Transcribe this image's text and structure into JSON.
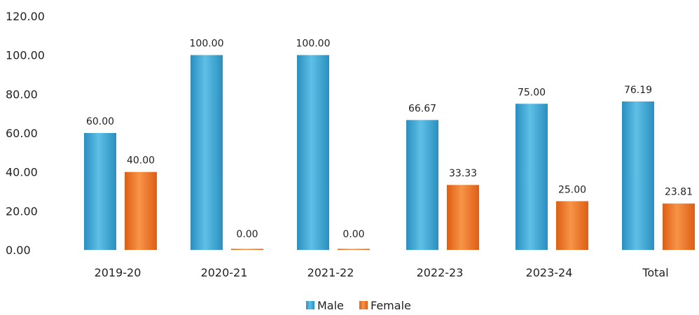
{
  "chart_data": {
    "type": "bar",
    "categories": [
      "2019-20",
      "2020-21",
      "2021-22",
      "2022-23",
      "2023-24",
      "Total"
    ],
    "series": [
      {
        "name": "Male",
        "values": [
          60.0,
          100.0,
          100.0,
          66.67,
          75.0,
          76.19
        ],
        "labels": [
          "60.00",
          "100.00",
          "100.00",
          "66.67",
          "75.00",
          "76.19"
        ]
      },
      {
        "name": "Female",
        "values": [
          40.0,
          0.0,
          0.0,
          33.33,
          25.0,
          23.81
        ],
        "labels": [
          "40.00",
          "0.00",
          "0.00",
          "33.33",
          "25.00",
          "23.81"
        ]
      }
    ],
    "yticks": [
      "0.00",
      "20.00",
      "40.00",
      "60.00",
      "80.00",
      "100.00",
      "120.00"
    ],
    "ylim": [
      0,
      120
    ],
    "grid": false,
    "legend_position": "bottom",
    "title": "",
    "xlabel": "",
    "ylabel": ""
  },
  "colors": {
    "male": "#3fa9d6",
    "male_dark": "#2488b8",
    "female": "#f27a2a",
    "female_dark": "#d85a10"
  }
}
